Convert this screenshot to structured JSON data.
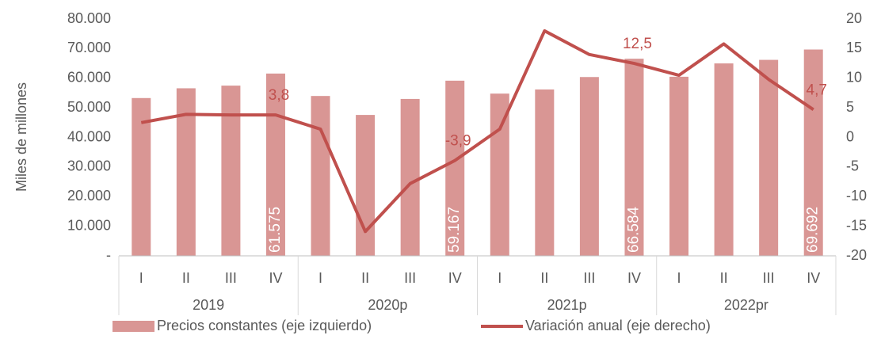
{
  "chart_data": {
    "type": "bar-line",
    "y_axis_label": "Miles de millones",
    "categories": [
      "I",
      "II",
      "III",
      "IV",
      "I",
      "II",
      "III",
      "IV",
      "I",
      "II",
      "III",
      "IV",
      "I",
      "II",
      "III",
      "IV"
    ],
    "category_groups": [
      "2019",
      "2020p",
      "2021p",
      "2022pr"
    ],
    "series": [
      {
        "name": "Precios constantes (eje izquierdo)",
        "type": "bar",
        "color": "#d99694",
        "values": [
          53300,
          56600,
          57500,
          61575,
          54000,
          47600,
          53000,
          59167,
          54800,
          56200,
          60400,
          66584,
          60500,
          65000,
          66200,
          69692
        ],
        "value_labels": [
          null,
          null,
          null,
          "61.575",
          null,
          null,
          null,
          "59.167",
          null,
          null,
          null,
          "66.584",
          null,
          null,
          null,
          "69.692"
        ]
      },
      {
        "name": "Variación anual (eje derecho)",
        "type": "line",
        "axis": "y2",
        "color": "#c0504d",
        "values": [
          2.5,
          3.9,
          3.8,
          3.8,
          1.4,
          -15.9,
          -7.8,
          -3.9,
          1.4,
          18.0,
          14.0,
          12.5,
          10.5,
          15.8,
          9.8,
          4.7
        ],
        "value_labels": [
          null,
          null,
          null,
          "3,8",
          null,
          null,
          null,
          "-3,9",
          null,
          null,
          null,
          "12,5",
          null,
          null,
          null,
          "4,7"
        ]
      }
    ],
    "ylim": [
      0,
      80000
    ],
    "yticks": [
      {
        "value": 0,
        "label": "-"
      },
      {
        "value": 10000,
        "label": "10.000"
      },
      {
        "value": 20000,
        "label": "20.000"
      },
      {
        "value": 30000,
        "label": "30.000"
      },
      {
        "value": 40000,
        "label": "40.000"
      },
      {
        "value": 50000,
        "label": "50.000"
      },
      {
        "value": 60000,
        "label": "60.000"
      },
      {
        "value": 70000,
        "label": "70.000"
      },
      {
        "value": 80000,
        "label": "80.000"
      }
    ],
    "y2lim": [
      -20,
      20
    ],
    "y2ticks": [
      -20,
      -15,
      -10,
      -5,
      0,
      5,
      10,
      15,
      20
    ],
    "legend": "bottom"
  }
}
